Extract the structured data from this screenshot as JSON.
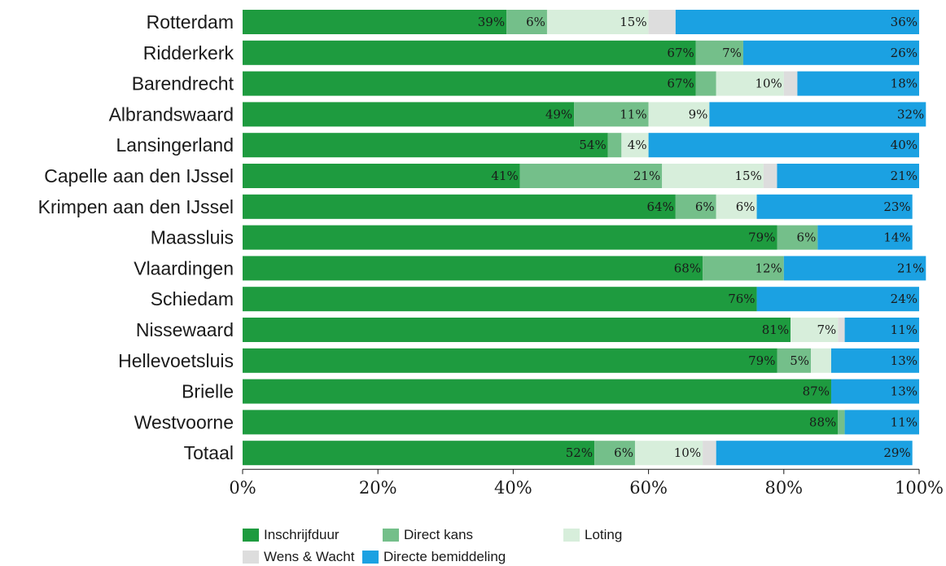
{
  "chart_data": {
    "type": "bar",
    "orientation": "horizontal",
    "stacked": true,
    "title": "",
    "xlabel": "",
    "ylabel": "",
    "xlim": [
      0,
      100
    ],
    "x_ticks": [
      "0%",
      "20%",
      "40%",
      "60%",
      "80%",
      "100%"
    ],
    "grid": false,
    "legend_position": "bottom",
    "categories": [
      "Rotterdam",
      "Ridderkerk",
      "Barendrecht",
      "Albrandswaard",
      "Lansingerland",
      "Capelle aan den IJssel",
      "Krimpen aan den IJssel",
      "Maassluis",
      "Vlaardingen",
      "Schiedam",
      "Nissewaard",
      "Hellevoetsluis",
      "Brielle",
      "Westvoorne",
      "Totaal"
    ],
    "series": [
      {
        "name": "Inschrijfduur",
        "color": "#1e9b3f",
        "values": [
          39,
          67,
          67,
          49,
          54,
          41,
          64,
          79,
          68,
          76,
          81,
          79,
          87,
          88,
          52
        ],
        "labels": [
          "39%",
          "67%",
          "67%",
          "49%",
          "54%",
          "41%",
          "64%",
          "79%",
          "68%",
          "76%",
          "81%",
          "79%",
          "87%",
          "88%",
          "52%"
        ]
      },
      {
        "name": "Direct kans",
        "color": "#74bf8a",
        "values": [
          6,
          7,
          3,
          11,
          2,
          21,
          6,
          6,
          12,
          0,
          0,
          5,
          0,
          1,
          6
        ],
        "labels": [
          "6%",
          "7%",
          "",
          "11%",
          "",
          "21%",
          "6%",
          "6%",
          "12%",
          "",
          "",
          "5%",
          "",
          "",
          "6%"
        ]
      },
      {
        "name": "Loting",
        "color": "#d7eedb",
        "values": [
          15,
          0,
          10,
          9,
          4,
          15,
          6,
          0,
          0,
          0,
          7,
          3,
          0,
          0,
          10
        ],
        "labels": [
          "15%",
          "",
          "10%",
          "9%",
          "4%",
          "15%",
          "6%",
          "",
          "",
          "",
          "7%",
          "",
          "",
          "",
          "10%"
        ]
      },
      {
        "name": "Wens & Wacht",
        "color": "#dddddd",
        "values": [
          4,
          0,
          2,
          0,
          0,
          2,
          0,
          0,
          0,
          0,
          1,
          0,
          0,
          0,
          2
        ],
        "labels": [
          "",
          "",
          "",
          "",
          "",
          "",
          "",
          "",
          "",
          "",
          "",
          "",
          "",
          "",
          ""
        ]
      },
      {
        "name": "Directe bemiddeling",
        "color": "#1ba1e2",
        "values": [
          36,
          26,
          18,
          32,
          40,
          21,
          23,
          14,
          21,
          24,
          11,
          13,
          13,
          11,
          29
        ],
        "labels": [
          "36%",
          "26%",
          "18%",
          "32%",
          "40%",
          "21%",
          "23%",
          "14%",
          "21%",
          "24%",
          "11%",
          "13%",
          "13%",
          "11%",
          "29%"
        ]
      }
    ]
  }
}
